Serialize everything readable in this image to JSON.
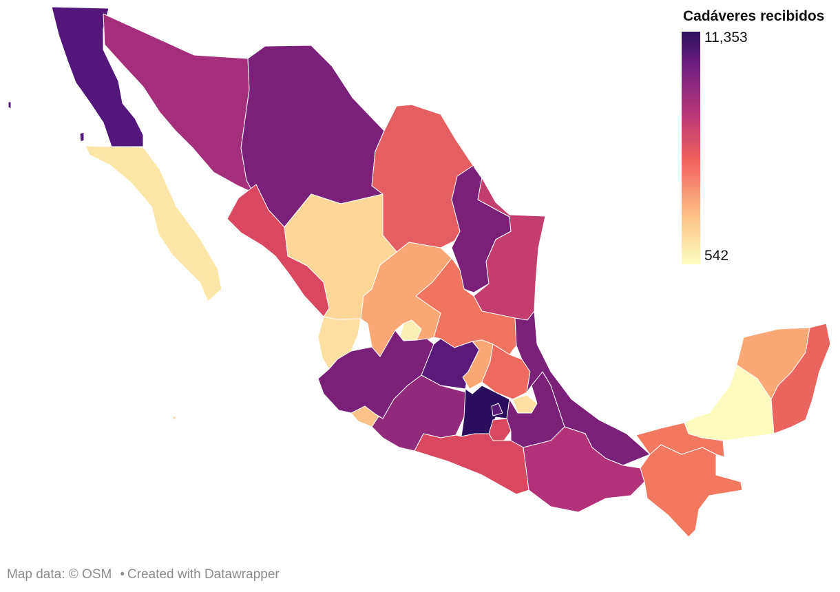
{
  "legend": {
    "title": "Cadáveres recibidos",
    "max_label": "11,353",
    "min_label": "542",
    "max_value": 11353,
    "min_value": 542,
    "color_stops": [
      "#fcfdbf",
      "#fec488",
      "#f1605d",
      "#b73779",
      "#721f81",
      "#2c115f"
    ]
  },
  "footer": {
    "map_data": "Map data: © OSM",
    "separator": "•",
    "created_with": "Created with Datawrapper"
  },
  "regions": [
    {
      "name": "baja-california",
      "color": "#53177b"
    },
    {
      "name": "baja-california-sur",
      "color": "#fde7a8"
    },
    {
      "name": "sonora",
      "color": "#a42e7b"
    },
    {
      "name": "chihuahua",
      "color": "#7a2079"
    },
    {
      "name": "coahuila",
      "color": "#e55f62"
    },
    {
      "name": "nuevo-leon",
      "color": "#7a2079"
    },
    {
      "name": "tamaulipas",
      "color": "#c33e6f"
    },
    {
      "name": "sinaloa",
      "color": "#d9485e"
    },
    {
      "name": "durango",
      "color": "#fdd698"
    },
    {
      "name": "nayarit",
      "color": "#fde0a1"
    },
    {
      "name": "zacatecas",
      "color": "#fba876"
    },
    {
      "name": "san-luis-potosi",
      "color": "#f0755f"
    },
    {
      "name": "aguascalientes",
      "color": "#fbefb4"
    },
    {
      "name": "jalisco",
      "color": "#7a2079"
    },
    {
      "name": "colima",
      "color": "#fcc28a"
    },
    {
      "name": "michoacan",
      "color": "#912a7a"
    },
    {
      "name": "guanajuato",
      "color": "#5a1a7a"
    },
    {
      "name": "queretaro",
      "color": "#fba876"
    },
    {
      "name": "hidalgo",
      "color": "#ee6a5f"
    },
    {
      "name": "estado-de-mexico",
      "color": "#2a0e5d"
    },
    {
      "name": "cdmx",
      "color": "#5a1a7a"
    },
    {
      "name": "morelos",
      "color": "#d9485e"
    },
    {
      "name": "tlaxcala",
      "color": "#fde0a1"
    },
    {
      "name": "puebla",
      "color": "#7a2079"
    },
    {
      "name": "veracruz",
      "color": "#7a2079"
    },
    {
      "name": "guerrero",
      "color": "#d9485e"
    },
    {
      "name": "oaxaca",
      "color": "#b1327a"
    },
    {
      "name": "chiapas",
      "color": "#f2785f"
    },
    {
      "name": "tabasco",
      "color": "#f2785f"
    },
    {
      "name": "campeche",
      "color": "#fdfbbe"
    },
    {
      "name": "yucatan",
      "color": "#fba876"
    },
    {
      "name": "quintana-roo",
      "color": "#ea6460"
    }
  ]
}
